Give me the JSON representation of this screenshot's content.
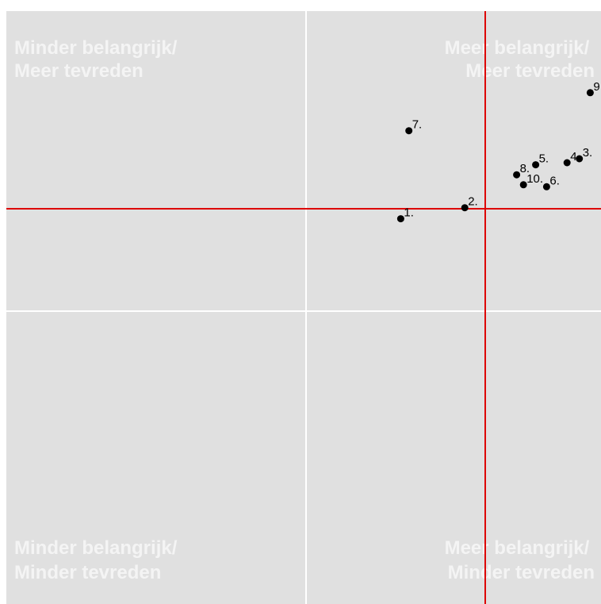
{
  "chart_data": {
    "type": "scatter",
    "title": "",
    "xlabel": "",
    "ylabel": "",
    "grid": true,
    "panel_color": "#e0e0e0",
    "gridline_color": "#ffffff",
    "reference_line_color": "#dd0000",
    "point_color": "#000000",
    "quadrant_label_color": "#f4f4f4",
    "quadrant_labels": [
      {
        "position": "top-left",
        "lines": [
          "Minder belangrijk/",
          "Meer tevreden"
        ]
      },
      {
        "position": "top-right",
        "lines": [
          "Meer belangrijk/",
          "Meer tevreden"
        ]
      },
      {
        "position": "bottom-left",
        "lines": [
          "Minder belangrijk/",
          "Minder tevreden"
        ]
      },
      {
        "position": "bottom-right",
        "lines": [
          "Meer belangrijk/",
          "Minder tevreden"
        ]
      }
    ],
    "points": [
      {
        "label": "1.",
        "x": -0.62,
        "y": -0.05
      },
      {
        "label": "2.",
        "x": -0.15,
        "y": 0.005
      },
      {
        "label": "3.",
        "x": 0.69,
        "y": 0.25
      },
      {
        "label": "4.",
        "x": 0.6,
        "y": 0.23
      },
      {
        "label": "5.",
        "x": 0.37,
        "y": 0.22
      },
      {
        "label": "6.",
        "x": 0.45,
        "y": 0.11
      },
      {
        "label": "7.",
        "x": -0.56,
        "y": 0.39
      },
      {
        "label": "8.",
        "x": 0.23,
        "y": 0.17
      },
      {
        "label": "9.",
        "x": 0.77,
        "y": 0.58
      },
      {
        "label": "10.",
        "x": 0.28,
        "y": 0.12
      }
    ]
  }
}
